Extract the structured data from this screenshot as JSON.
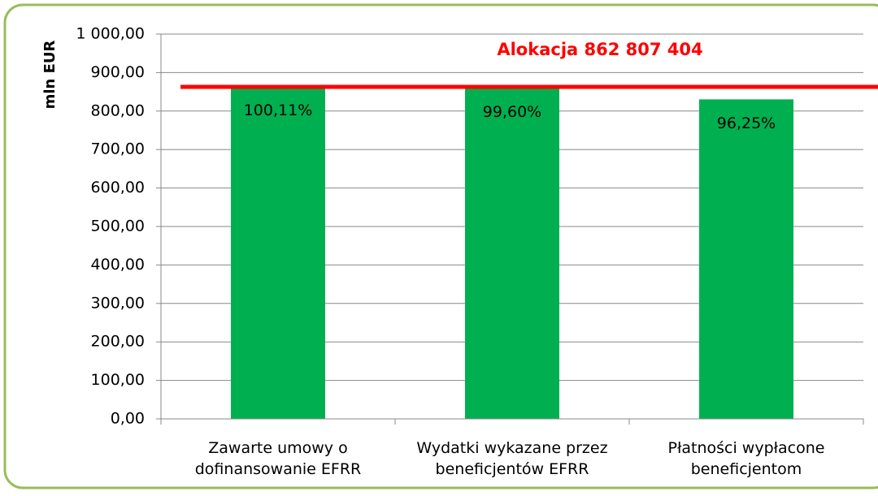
{
  "chart_data": {
    "type": "bar",
    "y_label": "mln EUR",
    "categories": [
      "Zawarte umowy o\ndofinansowanie EFRR",
      "Wydatki wykazane przez\nbeneficjentów EFRR",
      "Płatności wypłacone\nbeneficjentom"
    ],
    "values": [
      863.8,
      859.4,
      830.4
    ],
    "percent_labels": [
      "100,11%",
      "99,60%",
      "96,25%"
    ],
    "color": "#00b050",
    "reference_line": {
      "label": "Alokacja 862 807 404",
      "value": 862.807404,
      "color": "#ff0000"
    },
    "ylim": [
      0,
      1000
    ],
    "yticks": [
      {
        "value": 0,
        "label": "0,00"
      },
      {
        "value": 100,
        "label": "100,00"
      },
      {
        "value": 200,
        "label": "200,00"
      },
      {
        "value": 300,
        "label": "300,00"
      },
      {
        "value": 400,
        "label": "400,00"
      },
      {
        "value": 500,
        "label": "500,00"
      },
      {
        "value": 600,
        "label": "600,00"
      },
      {
        "value": 700,
        "label": "700,00"
      },
      {
        "value": 800,
        "label": "800,00"
      },
      {
        "value": 900,
        "label": "900,00"
      },
      {
        "value": 1000,
        "label": "1 000,00"
      }
    ],
    "grid": true
  }
}
